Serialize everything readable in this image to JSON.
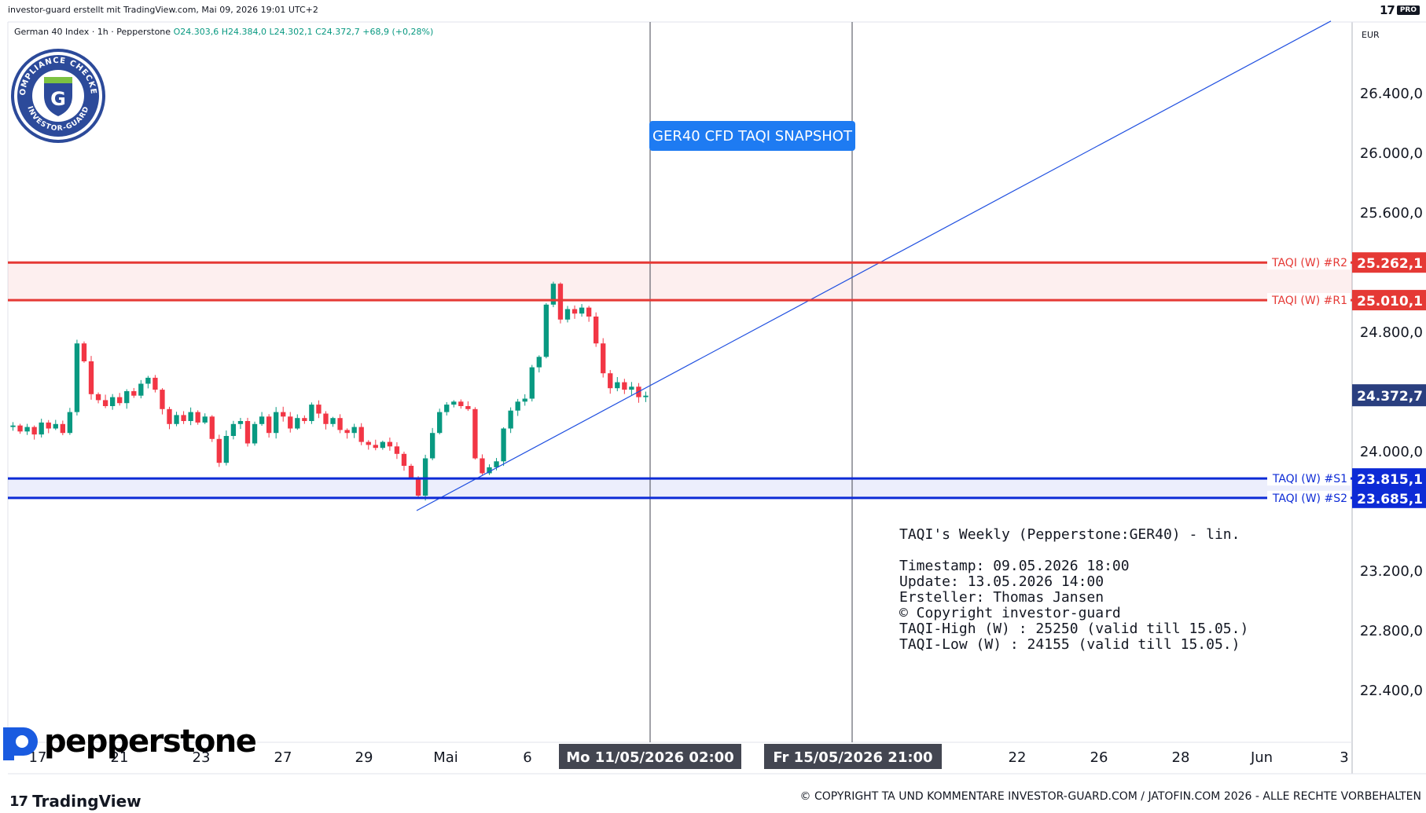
{
  "header": {
    "credit": "investor-guard erstellt mit TradingView.com, Mai 09, 2026 19:01 UTC+2",
    "tv_logo": "17",
    "tv_pro": "PRO"
  },
  "symbol_bar": {
    "name": "German 40 Index · 1h · Pepperstone",
    "open": "O24.303,6",
    "high": "H24.384,0",
    "low": "L24.302,1",
    "close": "C24.372,7",
    "change": "+68,9 (+0,28%)"
  },
  "seal": {
    "text_top": "COMPLIANCE CHECKED",
    "text_bottom": "INVESTOR-GUARD",
    "letter": "G"
  },
  "snapshot_label": "GER40 CFD TAQI SNAPSHOT",
  "info": {
    "title": "TAQI's Weekly (Pepperstone:GER40) - lin.",
    "timestamp": "Timestamp: 09.05.2026 18:00",
    "update": "Update: 13.05.2026 14:00",
    "author": "Ersteller: Thomas Jansen",
    "copy": "© Copyright investor-guard",
    "high": "TAQI-High (W) : 25250 (valid till 15.05.)",
    "low": "TAQI-Low (W) : 24155 (valid till 15.05.)"
  },
  "footer": {
    "pepperstone": "pepperstone",
    "tradingview": "TradingView",
    "copyright": "© COPYRIGHT TA UND KOMMENTARE INVESTOR-GUARD.COM / JATOFIN.COM 2026 - ALLE RECHTE VORBEHALTEN"
  },
  "chart_data": {
    "type": "candlestick",
    "currency": "EUR",
    "y_ticks": [
      {
        "label": "26.400,0",
        "value": 26400
      },
      {
        "label": "26.000,0",
        "value": 26000
      },
      {
        "label": "25.600,0",
        "value": 25600
      },
      {
        "label": "24.800,0",
        "value": 24800
      },
      {
        "label": "24.000,0",
        "value": 24000
      },
      {
        "label": "23.200,0",
        "value": 23200
      },
      {
        "label": "22.800,0",
        "value": 22800
      },
      {
        "label": "22.400,0",
        "value": 22400
      }
    ],
    "x_ticks": [
      "17",
      "21",
      "23",
      "27",
      "29",
      "Mai",
      "6",
      "22",
      "26",
      "28",
      "Jun",
      "3"
    ],
    "crosshair_labels": [
      "Mo 11/05/2026   02:00",
      "Fr 15/05/2026   21:00"
    ],
    "last_price": {
      "label": "24.372,7",
      "value": 24372.7,
      "color": "#2a3f7f"
    },
    "levels": [
      {
        "name": "TAQI (W) #R2",
        "label": "25.262,1",
        "value": 25262.1,
        "color": "#e53935"
      },
      {
        "name": "TAQI (W) #R1",
        "label": "25.010,1",
        "value": 25010.1,
        "color": "#e53935"
      },
      {
        "name": "TAQI (W) #S1",
        "label": "23.815,1",
        "value": 23815.1,
        "color": "#0d2bd6"
      },
      {
        "name": "TAQI (W) #S2",
        "label": "23.685,1",
        "value": 23685.1,
        "color": "#0d2bd6"
      }
    ],
    "trendline": {
      "from": {
        "t": "Apr 30",
        "value": 23600
      },
      "to": {
        "t": "Jun 3",
        "value": 26880
      },
      "color": "#1f4fe0"
    },
    "price_path": [
      24170,
      24130,
      24160,
      24110,
      24190,
      24150,
      24180,
      24120,
      24260,
      24720,
      24600,
      24380,
      24340,
      24300,
      24360,
      24320,
      24400,
      24370,
      24450,
      24490,
      24410,
      24280,
      24180,
      24240,
      24200,
      24260,
      24190,
      24230,
      24080,
      23920,
      24100,
      24180,
      24200,
      24050,
      24180,
      24230,
      24120,
      24260,
      24230,
      24150,
      24220,
      24200,
      24310,
      24250,
      24180,
      24220,
      24140,
      24120,
      24160,
      24060,
      24040,
      24020,
      24060,
      24030,
      23980,
      23900,
      23820,
      23700,
      23950,
      24120,
      24260,
      24310,
      24330,
      24300,
      24280,
      23950,
      23850,
      23890,
      23930,
      24150,
      24270,
      24330,
      24350,
      24560,
      24630,
      24980,
      25120,
      24880,
      24950,
      24920,
      24960,
      24900,
      24720,
      24520,
      24420,
      24460,
      24410,
      24430,
      24360,
      24370
    ],
    "colors": {
      "up": "#089981",
      "down": "#f23645",
      "grid": "#e0e3eb",
      "resistance_zone": "rgba(229,57,53,0.08)",
      "support_zone": "rgba(13,43,214,0.08)"
    }
  }
}
